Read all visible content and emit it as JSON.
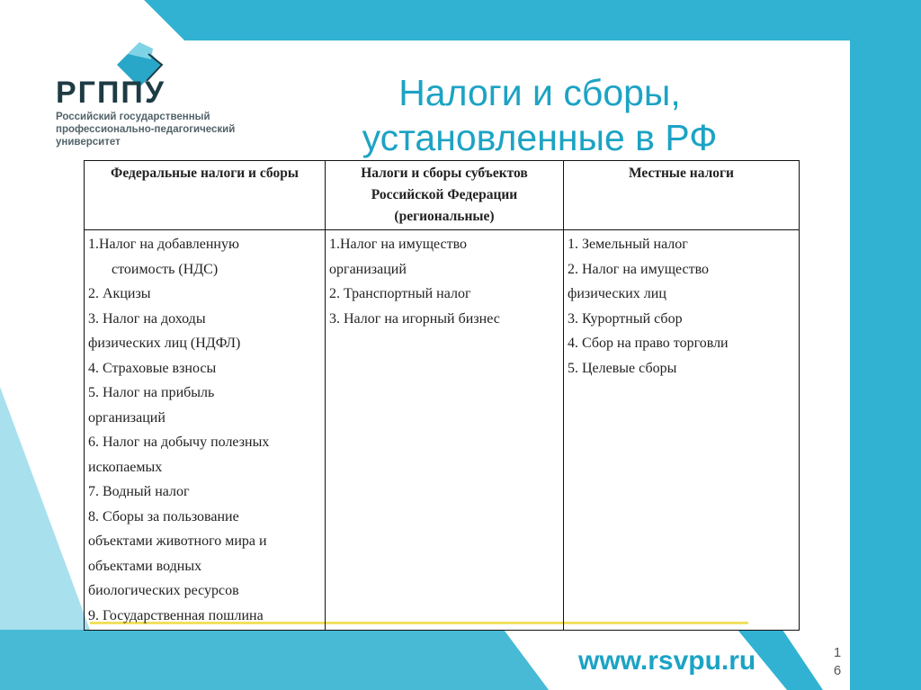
{
  "logo": {
    "abbr": "РГППУ",
    "subtitle": [
      "Российский государственный",
      "профессионально-педагогический",
      "университет"
    ]
  },
  "title": [
    "Налоги и сборы,",
    "установленные в РФ"
  ],
  "table": {
    "headers": [
      "Федеральные налоги и сборы",
      "Налоги и сборы субъектов Российской Федерации (региональные)",
      "Местные налоги"
    ],
    "federal": [
      "1.Налог на добавленную",
      "стоимость (НДС)",
      "2. Акцизы",
      "3. Налог на доходы",
      "физических лиц (НДФЛ)",
      "4. Страховые  взносы",
      "5. Налог на прибыль",
      "организаций",
      "6. Налог на добычу полезных",
      "ископаемых",
      "7. Водный налог",
      "8. Сборы за пользование",
      "объектами животного мира и",
      "объектами водных",
      "биологических ресурсов",
      "9. Государственная пошлина"
    ],
    "regional": [
      "1.Налог на имущество",
      "организаций",
      "2. Транспортный налог",
      "3. Налог на игорный бизнес"
    ],
    "local": [
      "1. Земельный налог",
      "2. Налог на имущество",
      "физических лиц",
      "3. Курортный сбор",
      "4. Сбор на право торговли",
      "5.  Целевые сборы"
    ]
  },
  "footer": {
    "url": "www.rsvpu.ru",
    "page": [
      "1",
      "6"
    ]
  },
  "colors": {
    "accent": "#1ca3c4",
    "background_shape": "#3ab4d2"
  }
}
